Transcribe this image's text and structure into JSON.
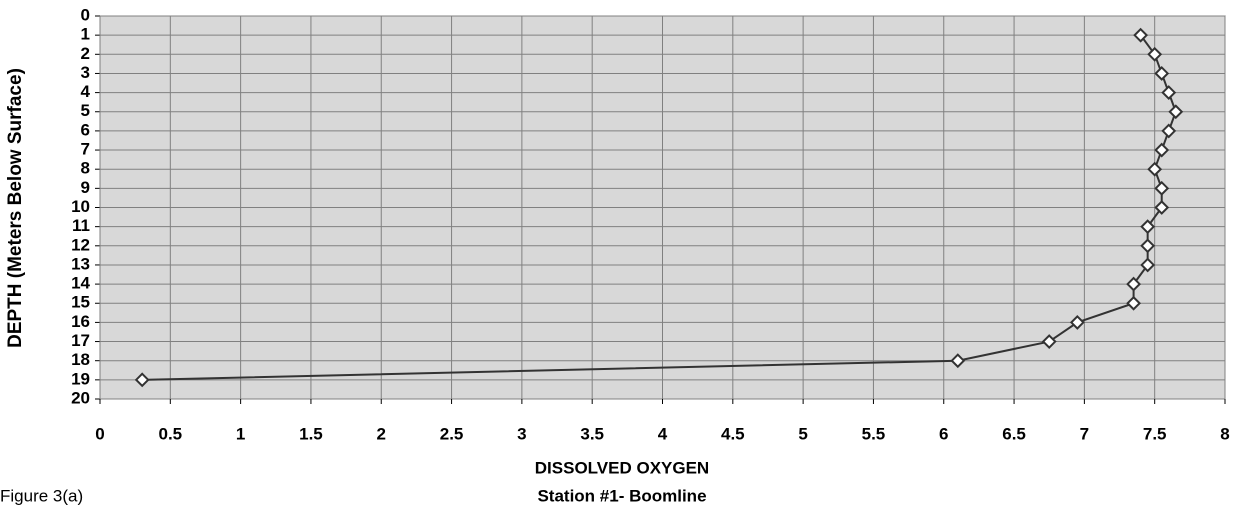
{
  "chart_data": {
    "type": "line",
    "caption": "Figure 3(a)",
    "x_label": "DISSOLVED OXYGEN",
    "subtitle": "Station #1- Boomline",
    "y_label": "DEPTH (Meters Below Surface)",
    "series": [
      {
        "color": "#333333",
        "x": [
          7.4,
          7.5,
          7.55,
          7.6,
          7.65,
          7.6,
          7.55,
          7.5,
          7.55,
          7.55,
          7.45,
          7.45,
          7.45,
          7.35,
          7.35,
          6.95,
          6.75,
          6.1,
          0.3
        ],
        "values": [
          1,
          2,
          3,
          4,
          5,
          6,
          7,
          8,
          9,
          10,
          11,
          12,
          13,
          14,
          15,
          16,
          17,
          18,
          19
        ]
      }
    ],
    "xlim": [
      0,
      8
    ],
    "xticks": [
      0,
      0.5,
      1,
      1.5,
      2,
      2.5,
      3,
      3.5,
      4,
      4.5,
      5,
      5.5,
      6,
      6.5,
      7,
      7.5,
      8
    ],
    "ylim": [
      20,
      0
    ],
    "yticks": [
      0,
      1,
      2,
      3,
      4,
      5,
      6,
      7,
      8,
      9,
      10,
      11,
      12,
      13,
      14,
      15,
      16,
      17,
      18,
      19,
      20
    ],
    "grid": true
  }
}
